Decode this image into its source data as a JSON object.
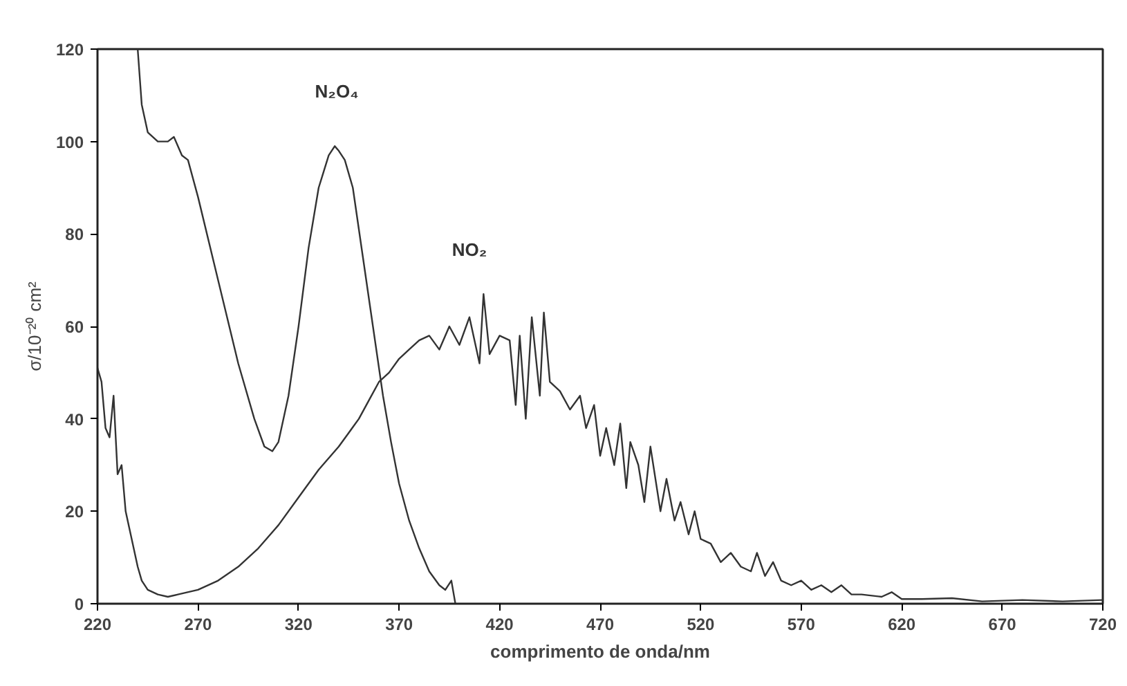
{
  "chart_data": {
    "type": "line",
    "xlabel": "comprimento de onda/nm",
    "ylabel": "σ/10⁻²⁰ cm²",
    "xlim": [
      220,
      720
    ],
    "xticks": [
      220,
      270,
      320,
      370,
      420,
      470,
      520,
      570,
      620,
      670,
      720
    ],
    "ylim": [
      0,
      120
    ],
    "yticks": [
      0,
      20,
      40,
      60,
      80,
      100,
      120
    ],
    "grid": false,
    "marker": "none",
    "line_style": "solid",
    "annotations": [
      "N₂O₄",
      "NO₂"
    ],
    "series": [
      {
        "color": "#333333",
        "x": [
          240,
          242,
          245,
          250,
          255,
          258,
          262,
          265,
          270,
          280,
          290,
          298,
          303,
          307,
          310,
          315,
          320,
          325,
          330,
          335,
          338,
          340,
          343,
          347,
          352,
          357,
          362,
          366,
          370,
          375,
          380,
          385,
          390,
          393,
          396,
          398
        ],
        "values": [
          120,
          108,
          102,
          100,
          100,
          101,
          97,
          96,
          88,
          70,
          52,
          40,
          34,
          33,
          35,
          45,
          60,
          77,
          90,
          97,
          99,
          98,
          96,
          90,
          75,
          60,
          45,
          35,
          26,
          18,
          12,
          7,
          4,
          3,
          5,
          0
        ]
      },
      {
        "color": "#333333",
        "x": [
          220,
          222,
          224,
          226,
          228,
          230,
          232,
          234,
          236,
          238,
          240,
          242,
          245,
          250,
          255,
          260,
          270,
          280,
          290,
          300,
          310,
          320,
          330,
          340,
          345,
          350,
          355,
          360,
          365,
          370,
          375,
          380,
          385,
          390,
          395,
          400,
          405,
          410,
          412,
          415,
          420,
          425,
          428,
          430,
          433,
          436,
          440,
          442,
          445,
          450,
          455,
          460,
          463,
          467,
          470,
          473,
          477,
          480,
          483,
          485,
          489,
          492,
          495,
          500,
          503,
          507,
          510,
          514,
          517,
          520,
          525,
          530,
          535,
          540,
          545,
          548,
          552,
          556,
          560,
          565,
          570,
          575,
          580,
          585,
          590,
          595,
          600,
          610,
          615,
          620,
          630,
          645,
          660,
          680,
          700,
          720
        ],
        "values": [
          51,
          48,
          38,
          36,
          45,
          28,
          30,
          20,
          16,
          12,
          8,
          5,
          3,
          2,
          1.5,
          2,
          3,
          5,
          8,
          12,
          17,
          23,
          29,
          34,
          37,
          40,
          44,
          48,
          50,
          53,
          55,
          57,
          58,
          55,
          60,
          56,
          62,
          52,
          67,
          54,
          58,
          57,
          43,
          58,
          40,
          62,
          45,
          63,
          48,
          46,
          42,
          45,
          38,
          43,
          32,
          38,
          30,
          39,
          25,
          35,
          30,
          22,
          34,
          20,
          27,
          18,
          22,
          15,
          20,
          14,
          13,
          9,
          11,
          8,
          7,
          11,
          6,
          9,
          5,
          4,
          5,
          3,
          4,
          2.5,
          4,
          2,
          2,
          1.5,
          2.5,
          1,
          1,
          1.2,
          0.5,
          0.8,
          0.5,
          0.8
        ]
      }
    ]
  }
}
